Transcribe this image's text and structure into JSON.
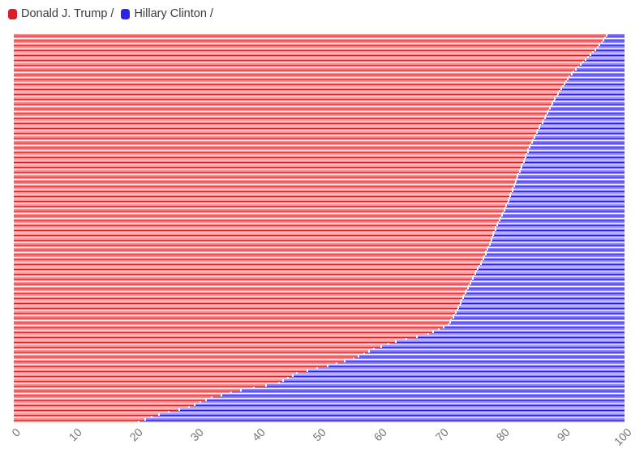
{
  "legend": {
    "items": [
      {
        "label": "Donald J. Trump /",
        "color": "#D81E28"
      },
      {
        "label": "Hillary Clinton /",
        "color": "#2F24E4"
      }
    ]
  },
  "chart_data": {
    "type": "bar",
    "variant": "horizontal-stacked-100pct",
    "title": "",
    "xlabel": "",
    "ylabel": "",
    "xlim": [
      0,
      100
    ],
    "x_ticks": [
      0,
      10,
      20,
      30,
      40,
      50,
      60,
      70,
      80,
      90,
      100
    ],
    "grid": false,
    "legend_position": "top-left",
    "stacks_to": 100,
    "bar_count": 160,
    "sort_order": "descending red share, top to bottom",
    "series": [
      {
        "name": "Donald J. Trump /",
        "role": "left-segment",
        "fill": "#F29292",
        "line": "#C9262C",
        "values": [
          97.0,
          96.7,
          96.4,
          96.1,
          95.8,
          95.5,
          95.1,
          94.7,
          94.3,
          93.9,
          93.5,
          93.1,
          92.7,
          92.3,
          91.9,
          91.5,
          91.2,
          90.9,
          90.6,
          90.3,
          90.0,
          89.8,
          89.5,
          89.3,
          89.0,
          88.8,
          88.5,
          88.3,
          88.1,
          87.9,
          87.6,
          87.4,
          87.2,
          87.0,
          86.8,
          86.6,
          86.4,
          86.1,
          85.9,
          85.7,
          85.5,
          85.3,
          85.1,
          84.9,
          84.7,
          84.5,
          84.3,
          84.1,
          84.0,
          83.8,
          83.7,
          83.5,
          83.4,
          83.2,
          83.0,
          82.9,
          82.7,
          82.5,
          82.4,
          82.2,
          82.1,
          81.9,
          81.8,
          81.6,
          81.5,
          81.3,
          81.2,
          81.0,
          80.9,
          80.7,
          80.5,
          80.3,
          80.2,
          80.0,
          79.8,
          79.6,
          79.4,
          79.2,
          79.0,
          78.8,
          78.7,
          78.5,
          78.4,
          78.2,
          78.1,
          77.9,
          77.8,
          77.6,
          77.4,
          77.2,
          77.1,
          76.9,
          76.7,
          76.5,
          76.3,
          76.1,
          75.8,
          75.6,
          75.4,
          75.2,
          75.0,
          74.8,
          74.6,
          74.4,
          74.2,
          74.0,
          73.8,
          73.6,
          73.4,
          73.2,
          73.1,
          72.9,
          72.7,
          72.5,
          72.3,
          72.0,
          71.8,
          71.5,
          71.3,
          71.0,
          70.2,
          69.4,
          68.5,
          67.7,
          65.9,
          64.2,
          62.4,
          61.2,
          60.0,
          58.8,
          58.0,
          57.2,
          56.3,
          55.5,
          54.1,
          52.7,
          51.3,
          49.6,
          47.9,
          46.2,
          45.5,
          44.8,
          44.0,
          43.3,
          41.2,
          39.2,
          37.1,
          35.5,
          33.9,
          32.3,
          31.4,
          30.4,
          29.5,
          28.5,
          26.9,
          25.2,
          23.6,
          22.5,
          21.4,
          20.3
        ]
      },
      {
        "name": "Hillary Clinton /",
        "role": "right-segment",
        "fill": "#908AF0",
        "line": "#2B1FD4",
        "values_are_complement_of": "Donald J. Trump /"
      }
    ]
  },
  "colors": {
    "background": "#FFFFFF",
    "axis_label": "#737373",
    "legend_text": "#3B3B3B",
    "separator_white": "#FFFFFF"
  }
}
